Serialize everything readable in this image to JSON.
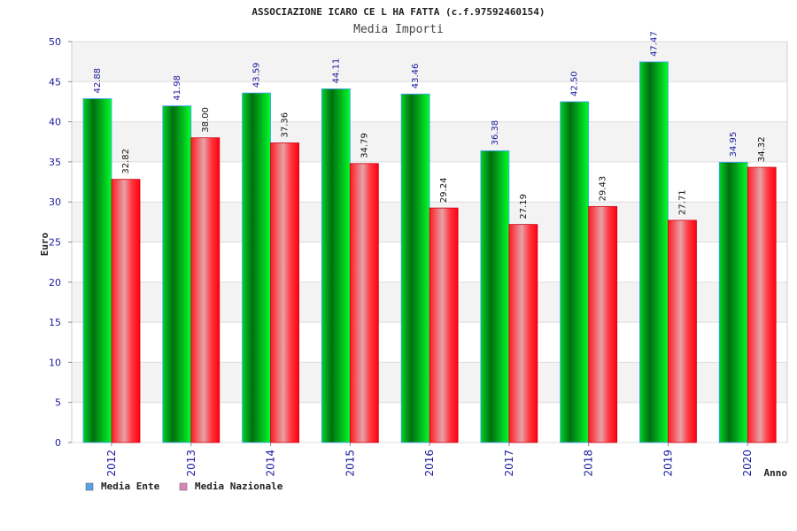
{
  "chart_data": {
    "type": "bar",
    "title": "ASSOCIAZIONE ICARO CE L HA FATTA (c.f.97592460154)",
    "subtitle": "Media Importi",
    "xlabel": "Anno",
    "ylabel": "Euro",
    "ylim": [
      0,
      50
    ],
    "yticks": [
      "0",
      "5",
      "10",
      "15",
      "20",
      "25",
      "30",
      "35",
      "40",
      "45",
      "50"
    ],
    "grid": true,
    "legend_position": "bottom-left",
    "categories": [
      "2012",
      "2013",
      "2014",
      "2015",
      "2016",
      "2017",
      "2018",
      "2019",
      "2020"
    ],
    "series": [
      {
        "name": "Media Ente",
        "color": "#00cc22",
        "legend_color": "#5aa0e6",
        "values": [
          42.88,
          41.98,
          43.59,
          44.11,
          43.46,
          36.38,
          42.5,
          47.47,
          34.95
        ],
        "labels": [
          "42.88",
          "41.98",
          "43.59",
          "44.11",
          "43.46",
          "36.38",
          "42.50",
          "47.47",
          "34.95"
        ],
        "label_color": "#1a1aa0"
      },
      {
        "name": "Media Nazionale",
        "color": "#ff1a22",
        "legend_color": "#d987b8",
        "values": [
          32.82,
          38.0,
          37.36,
          34.79,
          29.24,
          27.19,
          29.43,
          27.71,
          34.32
        ],
        "labels": [
          "32.82",
          "38.00",
          "37.36",
          "34.79",
          "29.24",
          "27.19",
          "29.43",
          "27.71",
          "34.32"
        ],
        "label_color": "#111111"
      }
    ]
  }
}
